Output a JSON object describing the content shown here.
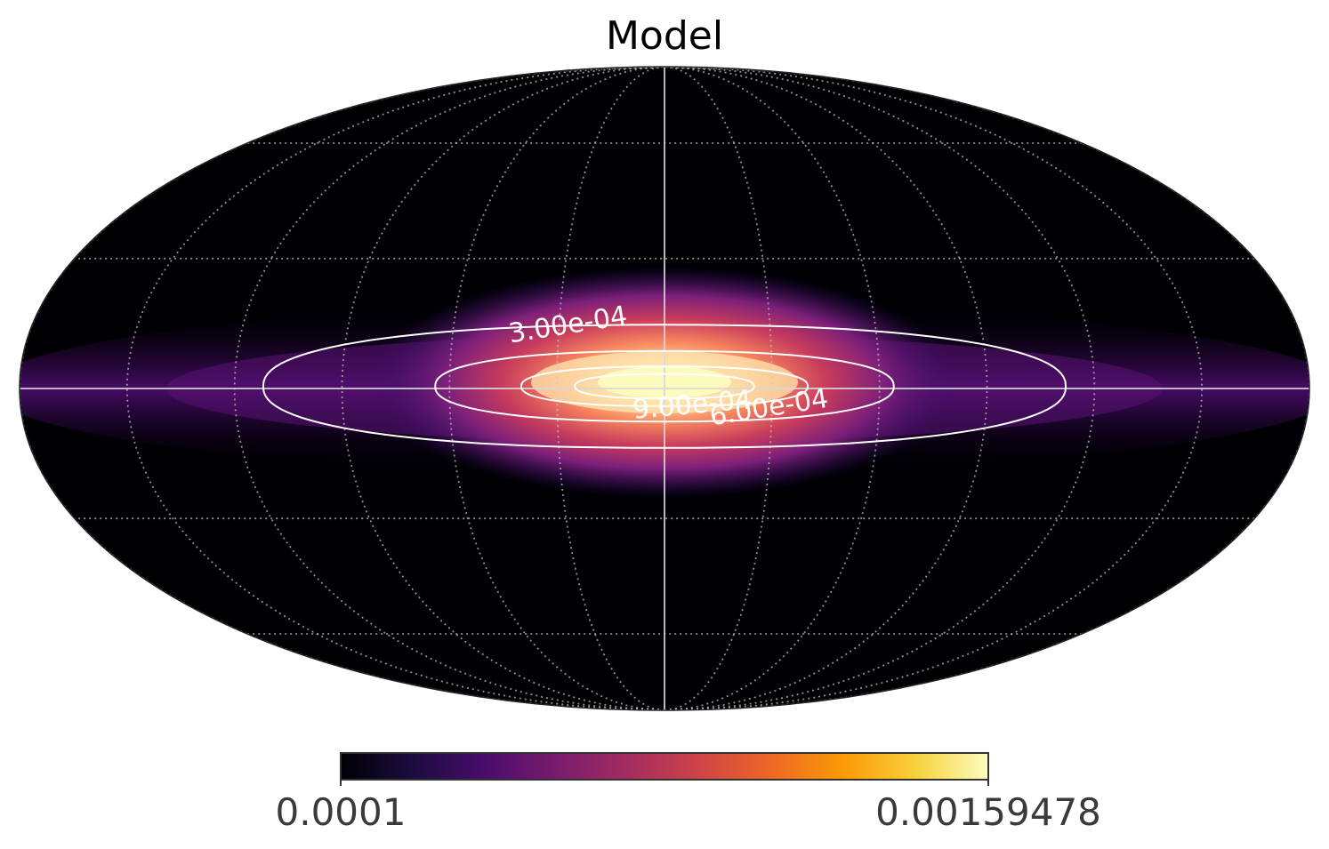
{
  "title": "Model",
  "projection": "mollweide",
  "colormap": {
    "name": "magma",
    "stops": [
      "#000004",
      "#1b0c41",
      "#4a0c6b",
      "#781c6d",
      "#a52c60",
      "#cf4446",
      "#ed6925",
      "#fb9b06",
      "#f7d13d",
      "#fcfdbf"
    ],
    "min_label": "0.0001",
    "max_label": "0.00159478",
    "min": 0.0001,
    "max": 0.00159478
  },
  "graticule": {
    "meridians_deg": [
      -180,
      -150,
      -120,
      -90,
      -60,
      -30,
      0,
      30,
      60,
      90,
      120,
      150,
      180
    ],
    "parallels_deg": [
      -60,
      -30,
      0,
      30,
      60
    ],
    "style": "dotted"
  },
  "axes_lines": {
    "central_meridian": true,
    "equator": true
  },
  "contours": [
    {
      "level": 0.0003,
      "label": "3.00e-04",
      "half_width_deg": 112,
      "half_height_deg": 14
    },
    {
      "level": 0.0006,
      "label": "6.00e-04",
      "half_width_deg": 64,
      "half_height_deg": 8
    },
    {
      "level": 0.0009,
      "label": "9.00e-04",
      "half_width_deg": 40,
      "half_height_deg": 4.5
    },
    {
      "level": 0.0012,
      "label": "",
      "half_width_deg": 25,
      "half_height_deg": 2.8
    }
  ],
  "chart_data": {
    "type": "heatmap",
    "title": "Model",
    "projection": "mollweide",
    "value_range": [
      0.0001,
      0.00159478
    ],
    "colorbar_ticks": [
      "0.0001",
      "0.00159478"
    ],
    "contour_levels": [
      0.0003,
      0.0006,
      0.0009
    ],
    "contour_labels": [
      "3.00e-04",
      "6.00e-04",
      "9.00e-04"
    ],
    "grid": true
  }
}
